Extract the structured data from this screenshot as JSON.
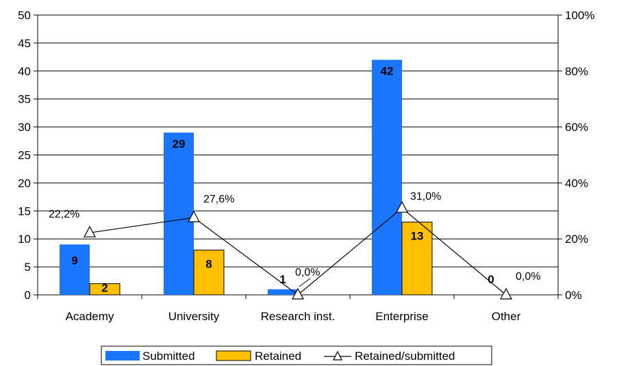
{
  "chart_data": {
    "type": "bar",
    "categories": [
      "Academy",
      "University",
      "Research inst.",
      "Enterprise",
      "Other"
    ],
    "series": [
      {
        "name": "Submitted",
        "values": [
          9,
          29,
          1,
          42,
          0
        ],
        "color": "#1a75ff"
      },
      {
        "name": "Retained",
        "values": [
          2,
          8,
          0,
          13,
          0
        ],
        "color": "#ffc000"
      }
    ],
    "line_series": {
      "name": "Retained/submitted",
      "values": [
        22.2,
        27.6,
        0.0,
        31.0,
        0.0
      ],
      "labels": [
        "22,2%",
        "27,6%",
        "0,0%",
        "31,0%",
        "0,0%"
      ],
      "axis": "secondary",
      "marker": "triangle"
    },
    "bar_labels": {
      "Submitted": [
        "9",
        "29",
        "1",
        "42",
        "0"
      ],
      "Retained": [
        "2",
        "8",
        "",
        "13",
        ""
      ]
    },
    "ylim": [
      0,
      50
    ],
    "y_ticks": [
      "0",
      "5",
      "10",
      "15",
      "20",
      "25",
      "30",
      "35",
      "40",
      "45",
      "50"
    ],
    "y2lim": [
      0,
      100
    ],
    "y2_ticks": [
      "0%",
      "20%",
      "40%",
      "60%",
      "80%",
      "100%"
    ],
    "grid": true,
    "legend_position": "bottom",
    "legend": [
      "Submitted",
      "Retained",
      "Retained/submitted"
    ]
  }
}
